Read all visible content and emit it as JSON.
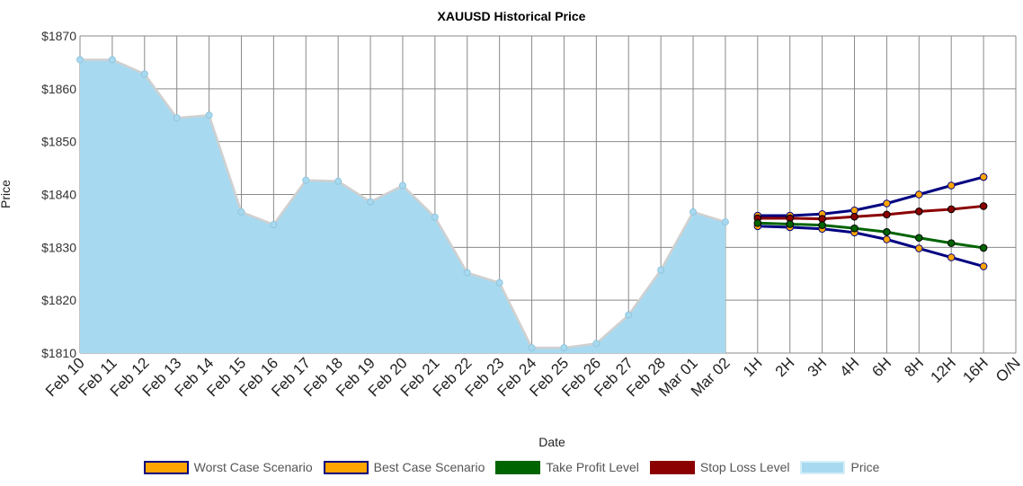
{
  "chart_data": {
    "type": "line",
    "title": "XAUUSD  Historical Price",
    "xlabel": "Date",
    "ylabel": "Price",
    "ylim": [
      1810,
      1870
    ],
    "y_ticks": [
      "$1810",
      "$1820",
      "$1830",
      "$1840",
      "$1850",
      "$1860",
      "$1870"
    ],
    "grid": true,
    "legend_position": "bottom",
    "categories": [
      "Feb 10",
      "Feb 11",
      "Feb 12",
      "Feb 13",
      "Feb 14",
      "Feb 15",
      "Feb 16",
      "Feb 17",
      "Feb 18",
      "Feb 19",
      "Feb 20",
      "Feb 21",
      "Feb 22",
      "Feb 23",
      "Feb 24",
      "Feb 25",
      "Feb 26",
      "Feb 27",
      "Feb 28",
      "Mar 01",
      "Mar 02",
      "1H",
      "2H",
      "3H",
      "4H",
      "6H",
      "8H",
      "12H",
      "16H",
      "O/N"
    ],
    "series": [
      {
        "name": "Price",
        "kind": "area",
        "color": "#a7daf0",
        "edge": "#d0d0d0",
        "values": [
          1865.5,
          1865.5,
          1862.8,
          1854.5,
          1855.0,
          1836.7,
          1834.3,
          1842.7,
          1842.5,
          1838.6,
          1841.7,
          1835.7,
          1825.2,
          1823.3,
          1811.0,
          1811.0,
          1811.8,
          1817.2,
          1825.7,
          1836.7,
          1834.8,
          null,
          null,
          null,
          null,
          null,
          null,
          null,
          null,
          null
        ]
      },
      {
        "name": "Best Case Scenario",
        "kind": "line",
        "color": "#ffa500",
        "edge": "#000080",
        "values": [
          null,
          null,
          null,
          null,
          null,
          null,
          null,
          null,
          null,
          null,
          null,
          null,
          null,
          null,
          null,
          null,
          null,
          null,
          null,
          null,
          null,
          1836.0,
          1836.0,
          1836.3,
          1837.0,
          1838.3,
          1840.0,
          1841.7,
          1843.3,
          null
        ]
      },
      {
        "name": "Worst Case Scenario",
        "kind": "line",
        "color": "#ffa500",
        "edge": "#000080",
        "values": [
          null,
          null,
          null,
          null,
          null,
          null,
          null,
          null,
          null,
          null,
          null,
          null,
          null,
          null,
          null,
          null,
          null,
          null,
          null,
          null,
          null,
          1834.0,
          1833.8,
          1833.5,
          1832.8,
          1831.5,
          1829.8,
          1828.1,
          1826.4,
          null
        ]
      },
      {
        "name": "Stop Loss Level",
        "kind": "line",
        "color": "#8b0000",
        "edge": "#8b0000",
        "values": [
          null,
          null,
          null,
          null,
          null,
          null,
          null,
          null,
          null,
          null,
          null,
          null,
          null,
          null,
          null,
          null,
          null,
          null,
          null,
          null,
          null,
          1835.5,
          1835.5,
          1835.4,
          1835.8,
          1836.2,
          1836.8,
          1837.2,
          1837.8,
          null
        ]
      },
      {
        "name": "Take Profit Level",
        "kind": "line",
        "color": "#006400",
        "edge": "#006400",
        "values": [
          null,
          null,
          null,
          null,
          null,
          null,
          null,
          null,
          null,
          null,
          null,
          null,
          null,
          null,
          null,
          null,
          null,
          null,
          null,
          null,
          null,
          1834.6,
          1834.4,
          1834.2,
          1833.6,
          1832.9,
          1831.8,
          1830.8,
          1829.9,
          null
        ]
      }
    ],
    "legend": [
      {
        "label": "Worst Case Scenario",
        "fill": "#ffa500",
        "border": "#000080"
      },
      {
        "label": "Best Case Scenario",
        "fill": "#ffa500",
        "border": "#000080"
      },
      {
        "label": "Take Profit Level",
        "fill": "#006400",
        "border": "#006400"
      },
      {
        "label": "Stop Loss Level",
        "fill": "#8b0000",
        "border": "#8b0000"
      },
      {
        "label": "Price",
        "fill": "#a7daf0",
        "border": "#d6eef8"
      }
    ]
  }
}
